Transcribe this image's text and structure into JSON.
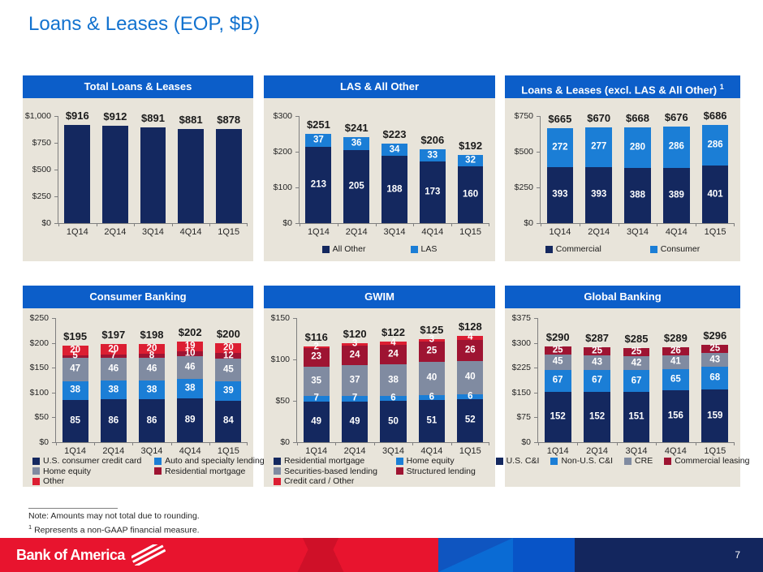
{
  "slide": {
    "title": "Loans & Leases (EOP, $B)"
  },
  "notes": {
    "line1": "Note: Amounts may not total due to rounding.",
    "line2_sup": "1",
    "line2": " Represents a non-GAAP financial measure."
  },
  "footer": {
    "logo_text": "Bank of America",
    "page_number": "7"
  },
  "colors": {
    "navy": "#14285f",
    "blue": "#1b7ed6",
    "gray": "#808ba1",
    "maroon": "#9e1432",
    "red": "#dc1e32",
    "panel_header_blue": "#0c5ec9",
    "panel_beige": "#e8e4da",
    "title_blue": "#1272cf",
    "footer_red": "#e8142e",
    "footer_navy": "#13265e",
    "footer_blue": "#0854c7"
  },
  "chart_data": [
    {
      "type": "bar",
      "title": "Total Loans & Leases",
      "title_sup": "",
      "categories": [
        "1Q14",
        "2Q14",
        "3Q14",
        "4Q14",
        "1Q15"
      ],
      "totals": [
        "$916",
        "$912",
        "$891",
        "$881",
        "$878"
      ],
      "series": [
        {
          "name": "Total loans & leases",
          "color": "navy",
          "values": [
            916,
            912,
            891,
            881,
            878
          ]
        }
      ],
      "show_segment_labels": false,
      "ymax": 1000,
      "yticks": [
        0,
        250,
        500,
        750,
        1000
      ],
      "ytick_labels": [
        "$0",
        "$250",
        "$500",
        "$750",
        "$1,000"
      ],
      "legend_layout": "none",
      "legend_gap": 0
    },
    {
      "type": "bar",
      "title": "LAS & All Other",
      "title_sup": "",
      "categories": [
        "1Q14",
        "2Q14",
        "3Q14",
        "4Q14",
        "1Q15"
      ],
      "totals": [
        "$251",
        "$241",
        "$223",
        "$206",
        "$192"
      ],
      "series": [
        {
          "name": "All Other",
          "color": "navy",
          "values": [
            213,
            205,
            188,
            173,
            160
          ]
        },
        {
          "name": "LAS",
          "color": "blue",
          "values": [
            37,
            36,
            34,
            33,
            32
          ]
        }
      ],
      "show_segment_labels": true,
      "ymax": 300,
      "yticks": [
        0,
        100,
        200,
        300
      ],
      "ytick_labels": [
        "$0",
        "$100",
        "$200",
        "$300"
      ],
      "legend_layout": "row",
      "legend_gap": 55
    },
    {
      "type": "bar",
      "title": "Loans & Leases (excl. LAS & All Other) ",
      "title_sup": "1",
      "categories": [
        "1Q14",
        "2Q14",
        "3Q14",
        "4Q14",
        "1Q15"
      ],
      "totals": [
        "$665",
        "$670",
        "$668",
        "$676",
        "$686"
      ],
      "series": [
        {
          "name": "Commercial",
          "color": "navy",
          "values": [
            393,
            393,
            388,
            389,
            401
          ]
        },
        {
          "name": "Consumer",
          "color": "blue",
          "values": [
            272,
            277,
            280,
            286,
            286
          ]
        }
      ],
      "show_segment_labels": true,
      "ymax": 750,
      "yticks": [
        0,
        250,
        500,
        750
      ],
      "ytick_labels": [
        "$0",
        "$250",
        "$500",
        "$750"
      ],
      "legend_layout": "row",
      "legend_gap": 60
    },
    {
      "type": "bar",
      "title": "Consumer Banking",
      "title_sup": "",
      "categories": [
        "1Q14",
        "2Q14",
        "3Q14",
        "4Q14",
        "1Q15"
      ],
      "totals": [
        "$195",
        "$197",
        "$198",
        "$202",
        "$200"
      ],
      "series": [
        {
          "name": "U.S. consumer credit card",
          "color": "navy",
          "values": [
            85,
            86,
            86,
            89,
            84
          ]
        },
        {
          "name": "Auto and specialty lending",
          "color": "blue",
          "values": [
            38,
            38,
            38,
            38,
            39
          ]
        },
        {
          "name": "Home equity",
          "color": "gray",
          "values": [
            47,
            46,
            46,
            46,
            45
          ]
        },
        {
          "name": "Residential mortgage",
          "color": "maroon",
          "values": [
            5,
            7,
            8,
            10,
            12
          ]
        },
        {
          "name": "Other",
          "color": "red",
          "values": [
            20,
            20,
            20,
            19,
            20
          ]
        }
      ],
      "show_segment_labels": true,
      "ymax": 250,
      "yticks": [
        0,
        50,
        100,
        150,
        200,
        250
      ],
      "ytick_labels": [
        "$0",
        "$50",
        "$100",
        "$150",
        "$200",
        "$250"
      ],
      "legend_layout": "grid2",
      "legend_gap": 0
    },
    {
      "type": "bar",
      "title": "GWIM",
      "title_sup": "",
      "categories": [
        "1Q14",
        "2Q14",
        "3Q14",
        "4Q14",
        "1Q15"
      ],
      "totals": [
        "$116",
        "$120",
        "$122",
        "$125",
        "$128"
      ],
      "series": [
        {
          "name": "Residential mortgage",
          "color": "navy",
          "values": [
            49,
            49,
            50,
            51,
            52
          ]
        },
        {
          "name": "Home equity",
          "color": "blue",
          "values": [
            7,
            7,
            6,
            6,
            6
          ]
        },
        {
          "name": "Securities-based lending",
          "color": "gray",
          "values": [
            35,
            37,
            38,
            40,
            40
          ]
        },
        {
          "name": "Structured lending",
          "color": "maroon",
          "values": [
            23,
            24,
            24,
            25,
            26
          ]
        },
        {
          "name": "Credit card / Other",
          "color": "red",
          "values": [
            2,
            3,
            4,
            3,
            4
          ]
        }
      ],
      "show_segment_labels": true,
      "ymax": 150,
      "yticks": [
        0,
        50,
        100,
        150
      ],
      "ytick_labels": [
        "$0",
        "$50",
        "$100",
        "$150"
      ],
      "legend_layout": "grid2",
      "legend_gap": 0
    },
    {
      "type": "bar",
      "title": "Global Banking",
      "title_sup": "",
      "categories": [
        "1Q14",
        "2Q14",
        "3Q14",
        "4Q14",
        "1Q15"
      ],
      "totals": [
        "$290",
        "$287",
        "$285",
        "$289",
        "$296"
      ],
      "series": [
        {
          "name": "U.S. C&I",
          "color": "navy",
          "values": [
            152,
            152,
            151,
            156,
            159
          ]
        },
        {
          "name": "Non-U.S. C&I",
          "color": "blue",
          "values": [
            67,
            67,
            67,
            65,
            68
          ]
        },
        {
          "name": "CRE",
          "color": "gray",
          "values": [
            45,
            43,
            42,
            41,
            43
          ]
        },
        {
          "name": "Commercial leasing",
          "color": "maroon",
          "values": [
            25,
            25,
            25,
            26,
            25
          ]
        }
      ],
      "show_segment_labels": true,
      "ymax": 375,
      "yticks": [
        0,
        75,
        150,
        225,
        300,
        375
      ],
      "ytick_labels": [
        "$0",
        "$75",
        "$150",
        "$225",
        "$300",
        "$375"
      ],
      "legend_layout": "row",
      "legend_gap": 14
    }
  ]
}
